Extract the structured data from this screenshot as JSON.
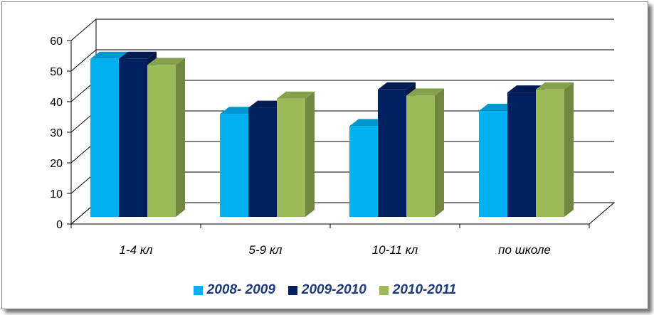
{
  "chart_data": {
    "type": "bar",
    "title": "",
    "xlabel": "",
    "ylabel": "",
    "ylim": [
      0,
      60
    ],
    "yticks": [
      "0",
      "10",
      "20",
      "30",
      "40",
      "50",
      "60"
    ],
    "categories": [
      "1-4 кл",
      "5-9 кл",
      "10-11 кл",
      "по школе"
    ],
    "series": [
      {
        "name": "2008- 2009",
        "color": "#00b0f0",
        "values": [
          54,
          36,
          32,
          37
        ]
      },
      {
        "name": "2009-2010",
        "color": "#002060",
        "values": [
          54,
          38,
          44,
          43
        ]
      },
      {
        "name": "2010-2011",
        "color": "#9bbb59",
        "values": [
          52,
          41,
          42,
          44
        ]
      }
    ],
    "grid": true,
    "legend_position": "bottom"
  }
}
